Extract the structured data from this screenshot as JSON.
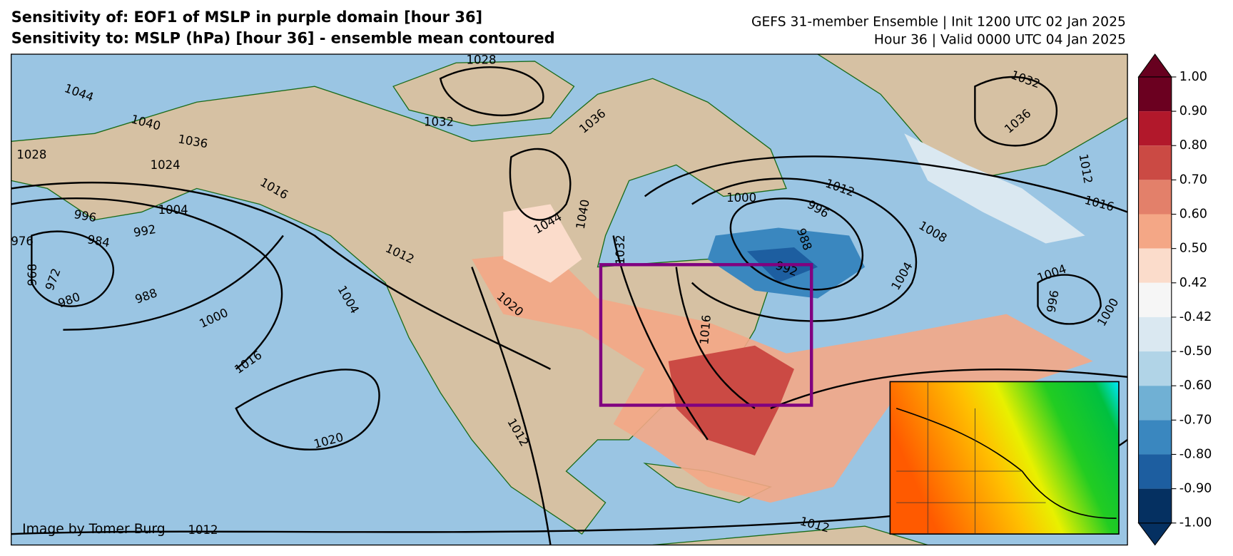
{
  "header": {
    "title_line1": "Sensitivity of: EOF1 of MSLP in purple domain [hour 36]",
    "title_line2": "Sensitivity to: MSLP (hPa) [hour 36] - ensemble mean contoured",
    "info_line1": "GEFS 31-member Ensemble | Init 1200 UTC 02 Jan 2025",
    "info_line2": "Hour 36 | Valid 0000 UTC 04 Jan 2025"
  },
  "map": {
    "credit": "Image by Tomer Burg",
    "domain_color": "#800080",
    "ocean_color": "#9ac5e3",
    "land_color": "#d6c1a3",
    "contour_labels": [
      1028,
      1044,
      1040,
      1036,
      1028,
      1024,
      1016,
      1004,
      996,
      992,
      984,
      976,
      968,
      972,
      980,
      988,
      1000,
      1016,
      1020,
      1012,
      1004,
      1020,
      1044,
      1040,
      1032,
      1036,
      1032,
      1000,
      996,
      988,
      992,
      1004,
      1008,
      1012,
      1016,
      1012,
      1032,
      1036,
      1004,
      996,
      1000,
      1016,
      1012,
      1012,
      1012
    ]
  },
  "colorbar": {
    "ticks": [
      {
        "value": 1,
        "label": "1.00"
      },
      {
        "value": 0.9,
        "label": "0.90"
      },
      {
        "value": 0.8,
        "label": "0.80"
      },
      {
        "value": 0.7,
        "label": "0.70"
      },
      {
        "value": 0.6,
        "label": "0.60"
      },
      {
        "value": 0.5,
        "label": "0.50"
      },
      {
        "value": 0.42,
        "label": "0.42"
      },
      {
        "value": -0.42,
        "label": "-0.42"
      },
      {
        "value": -0.5,
        "label": "-0.50"
      },
      {
        "value": -0.6,
        "label": "-0.60"
      },
      {
        "value": -0.7,
        "label": "-0.70"
      },
      {
        "value": -0.8,
        "label": "-0.80"
      },
      {
        "value": -0.9,
        "label": "-0.90"
      },
      {
        "value": -1,
        "label": "-1.00"
      }
    ],
    "colors": [
      "#6b0020",
      "#b2182b",
      "#cb4a44",
      "#e3806a",
      "#f4a786",
      "#fbdccb",
      "#f6f6f6",
      "#dae8f1",
      "#b1d4e7",
      "#70b0d4",
      "#3a87bf",
      "#1d5ea0",
      "#053061"
    ],
    "extend_colors": [
      "#67001f",
      "#053061"
    ]
  }
}
